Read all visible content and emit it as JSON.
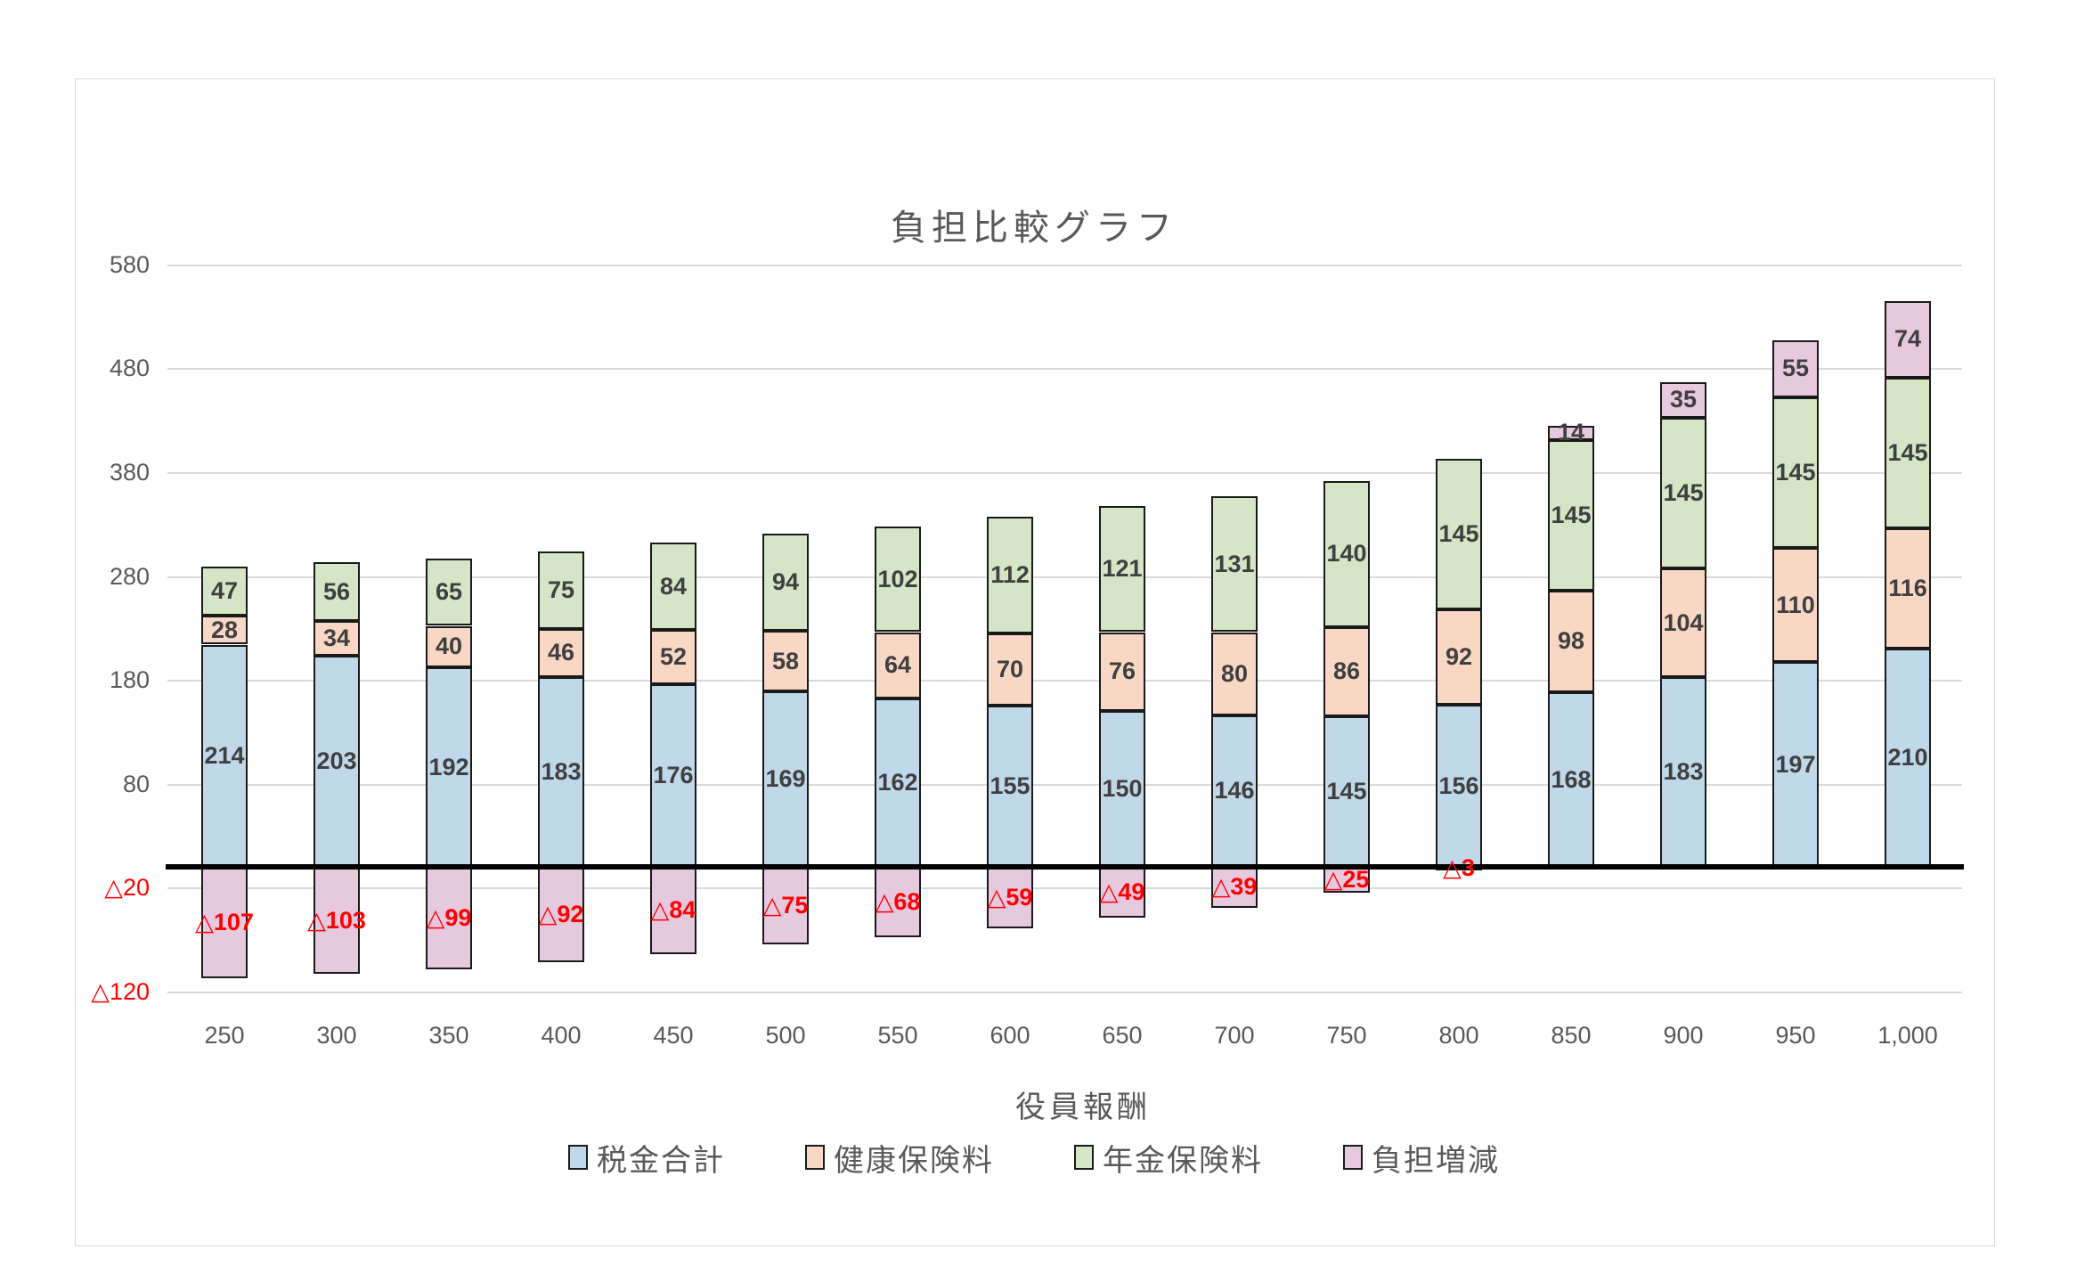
{
  "chart_data": {
    "type": "bar",
    "stacked": true,
    "title": "負担比較グラフ",
    "xlabel": "役員報酬",
    "categories": [
      "250",
      "300",
      "350",
      "400",
      "450",
      "500",
      "550",
      "600",
      "650",
      "700",
      "750",
      "800",
      "850",
      "900",
      "950",
      "1,000"
    ],
    "series": [
      {
        "name": "税金合計",
        "color": "#BFD9EB",
        "values": [
          214,
          203,
          192,
          183,
          176,
          169,
          162,
          155,
          150,
          146,
          145,
          156,
          168,
          183,
          197,
          210
        ]
      },
      {
        "name": "健康保険料",
        "color": "#F8D8C4",
        "values": [
          28,
          34,
          40,
          46,
          52,
          58,
          64,
          70,
          76,
          80,
          86,
          92,
          98,
          104,
          110,
          116
        ]
      },
      {
        "name": "年金保険料",
        "color": "#D4E6C5",
        "values": [
          47,
          56,
          65,
          75,
          84,
          94,
          102,
          112,
          121,
          131,
          140,
          145,
          145,
          145,
          145,
          145
        ]
      },
      {
        "name": "負担増減",
        "color": "#E6C8DF",
        "values": [
          -107,
          -103,
          -99,
          -92,
          -84,
          -75,
          -68,
          -59,
          -49,
          -39,
          -25,
          -3,
          14,
          35,
          55,
          74
        ]
      }
    ],
    "y_ticks": [
      {
        "value": 580,
        "label": "580"
      },
      {
        "value": 480,
        "label": "480"
      },
      {
        "value": 380,
        "label": "380"
      },
      {
        "value": 280,
        "label": "280"
      },
      {
        "value": 180,
        "label": "180"
      },
      {
        "value": 80,
        "label": "80"
      },
      {
        "value": -20,
        "label": "△20"
      },
      {
        "value": -120,
        "label": "△120"
      }
    ],
    "ylim": [
      -120,
      580
    ],
    "grid": true,
    "legend_position": "bottom",
    "negative_prefix": "△",
    "colors": {
      "axis_text": "#595959",
      "data_label": "#3f3f3f",
      "negative_label": "#ff0000",
      "gridline": "#d9d9d9",
      "zero_line": "#000000",
      "bar_border": "#1a1a1a"
    }
  }
}
